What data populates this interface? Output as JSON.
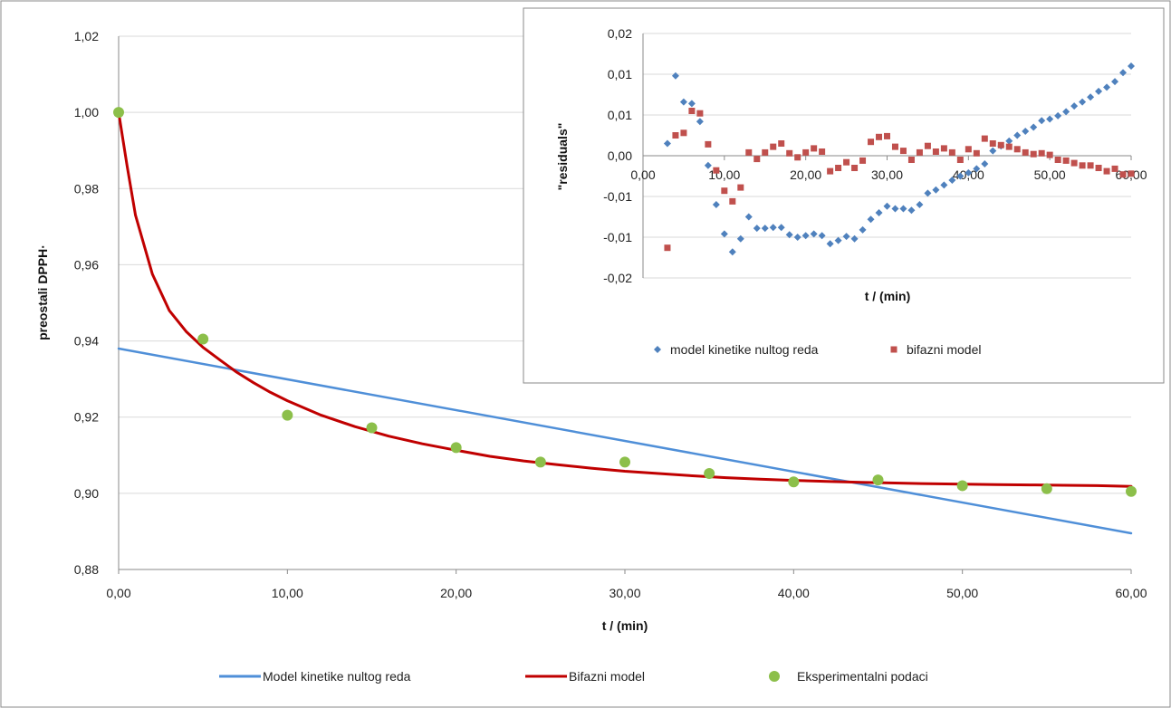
{
  "chart_data": [
    {
      "type": "line",
      "title": "",
      "xlabel": "t / (min)",
      "ylabel": "preostali DPPH·",
      "xlim": [
        0,
        60
      ],
      "ylim": [
        0.88,
        1.02
      ],
      "x_ticks": [
        "0,00",
        "10,00",
        "20,00",
        "30,00",
        "40,00",
        "50,00",
        "60,00"
      ],
      "y_ticks": [
        "0,88",
        "0,90",
        "0,92",
        "0,94",
        "0,96",
        "0,98",
        "1,00",
        "1,02"
      ],
      "grid": true,
      "legend_position": "bottom",
      "series": [
        {
          "name": "Model kinetike nultog reda",
          "kind": "line",
          "color": "#4f8fd8",
          "x": [
            0,
            60
          ],
          "y": [
            0.938,
            0.8895
          ]
        },
        {
          "name": "Bifazni model",
          "kind": "line",
          "color": "#c00000",
          "x": [
            0,
            0.5,
            1,
            2,
            3,
            4,
            5,
            6,
            7,
            8,
            9,
            10,
            12,
            14,
            16,
            18,
            20,
            22,
            24,
            26,
            28,
            30,
            32,
            34,
            36,
            38,
            40,
            42,
            44,
            46,
            48,
            50,
            52,
            54,
            56,
            58,
            60
          ],
          "y": [
            1.0,
            0.986,
            0.973,
            0.9575,
            0.948,
            0.9425,
            0.9383,
            0.935,
            0.9318,
            0.929,
            0.9265,
            0.9243,
            0.9205,
            0.9175,
            0.915,
            0.913,
            0.9113,
            0.9097,
            0.9085,
            0.9075,
            0.9066,
            0.9058,
            0.9052,
            0.9046,
            0.9041,
            0.9037,
            0.9034,
            0.9031,
            0.9029,
            0.9027,
            0.9025,
            0.9024,
            0.9023,
            0.9022,
            0.9021,
            0.902,
            0.9018
          ]
        },
        {
          "name": "Eksperimentalni podaci",
          "kind": "scatter",
          "color": "#8cbf4a",
          "x": [
            0,
            5,
            10,
            15,
            20,
            25,
            30,
            35,
            40,
            45,
            50,
            55,
            60
          ],
          "y": [
            1.0,
            0.9405,
            0.9205,
            0.9172,
            0.912,
            0.9082,
            0.9082,
            0.9052,
            0.903,
            0.9035,
            0.902,
            0.9012,
            0.9005
          ]
        }
      ]
    },
    {
      "type": "scatter",
      "title": "",
      "xlabel": "t / (min)",
      "ylabel": "\"residuals\"",
      "xlim": [
        0,
        60
      ],
      "ylim": [
        -0.015,
        0.015
      ],
      "x_ticks": [
        "0,00",
        "10,00",
        "20,00",
        "30,00",
        "40,00",
        "50,00",
        "60,00"
      ],
      "y_ticks": [
        "-0,02",
        "-0,01",
        "-0,01",
        "0,00",
        "0,01",
        "0,01",
        "0,02"
      ],
      "grid": true,
      "legend_position": "bottom",
      "series": [
        {
          "name": "model kinetike nultog reda",
          "marker": "diamond",
          "color": "#4f81bd",
          "x": [
            3,
            4,
            5,
            6,
            7,
            8,
            9,
            10,
            11,
            12,
            13,
            14,
            15,
            16,
            17,
            18,
            19,
            20,
            21,
            22,
            23,
            24,
            25,
            26,
            27,
            28,
            29,
            30,
            31,
            32,
            33,
            34,
            35,
            36,
            37,
            38,
            39,
            40,
            41,
            42,
            43,
            44,
            45,
            46,
            47,
            48,
            49,
            50,
            51,
            52,
            53,
            54,
            55,
            56,
            57,
            58,
            59,
            60
          ],
          "y": [
            0.0015,
            0.0098,
            0.0066,
            0.0064,
            0.0042,
            -0.0012,
            -0.006,
            -0.0096,
            -0.0118,
            -0.0102,
            -0.0075,
            -0.0089,
            -0.0089,
            -0.0088,
            -0.0088,
            -0.0097,
            -0.01,
            -0.0098,
            -0.0096,
            -0.0098,
            -0.0108,
            -0.0104,
            -0.0099,
            -0.0102,
            -0.0091,
            -0.0078,
            -0.007,
            -0.0062,
            -0.0065,
            -0.0065,
            -0.0067,
            -0.006,
            -0.0046,
            -0.0042,
            -0.0036,
            -0.003,
            -0.0025,
            -0.0021,
            -0.0016,
            -0.001,
            0.0006,
            0.0012,
            0.0018,
            0.0025,
            0.003,
            0.0035,
            0.0043,
            0.0045,
            0.0049,
            0.0054,
            0.0061,
            0.0066,
            0.0072,
            0.0079,
            0.0084,
            0.0091,
            0.0102,
            0.011
          ]
        },
        {
          "name": "bifazni model",
          "marker": "square",
          "color": "#c0504d",
          "x": [
            3,
            4,
            5,
            6,
            7,
            8,
            9,
            10,
            11,
            12,
            13,
            14,
            15,
            16,
            17,
            18,
            19,
            20,
            21,
            22,
            23,
            24,
            25,
            26,
            27,
            28,
            29,
            30,
            31,
            32,
            33,
            34,
            35,
            36,
            37,
            38,
            39,
            40,
            41,
            42,
            43,
            44,
            45,
            46,
            47,
            48,
            49,
            50,
            51,
            52,
            53,
            54,
            55,
            56,
            57,
            58,
            59,
            60
          ],
          "y": [
            -0.0113,
            0.0025,
            0.0028,
            0.0055,
            0.0052,
            0.0014,
            -0.0018,
            -0.0043,
            -0.0056,
            -0.0039,
            0.0004,
            -0.0004,
            0.0004,
            0.0011,
            0.0015,
            0.0003,
            -0.0002,
            0.0004,
            0.0009,
            0.0005,
            -0.0019,
            -0.0015,
            -0.0008,
            -0.0015,
            -0.0006,
            0.0017,
            0.0023,
            0.0024,
            0.0011,
            0.0006,
            -0.0005,
            0.0004,
            0.0012,
            0.0005,
            0.0009,
            0.0004,
            -0.0005,
            0.0008,
            0.0003,
            0.0021,
            0.0015,
            0.0013,
            0.0011,
            0.0008,
            0.0004,
            0.0002,
            0.0003,
            0.0001,
            -0.0005,
            -0.0006,
            -0.0009,
            -0.0012,
            -0.0012,
            -0.0015,
            -0.0019,
            -0.0016,
            -0.0023,
            -0.0022
          ]
        }
      ]
    }
  ]
}
